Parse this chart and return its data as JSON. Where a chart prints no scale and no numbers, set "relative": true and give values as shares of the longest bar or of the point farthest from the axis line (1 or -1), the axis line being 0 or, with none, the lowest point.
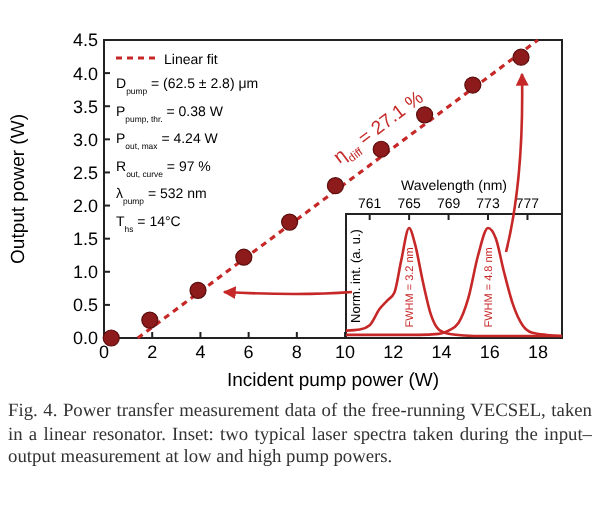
{
  "chart_data": [
    {
      "type": "scatter",
      "xlabel": "Incident pump power (W)",
      "ylabel": "Output power (W)",
      "xlim": [
        0,
        19
      ],
      "xticks": [
        0,
        2,
        4,
        6,
        8,
        10,
        12,
        14,
        16,
        18
      ],
      "ylim": [
        0,
        4.5
      ],
      "yticks": [
        {
          "value": 0,
          "label": "0.0"
        },
        0.5,
        {
          "value": 1,
          "label": "1.0"
        },
        1.5,
        {
          "value": 2,
          "label": "2.0"
        },
        2.5,
        {
          "value": 3,
          "label": "3.0"
        },
        3.5,
        {
          "value": 4,
          "label": "4.0"
        },
        4.5
      ],
      "grid": false,
      "legend": "top left",
      "series": [
        {
          "type": "line",
          "name": "Linear fit",
          "color": "#c62828",
          "line_style": "dashed",
          "x": [
            1.4,
            18.0
          ],
          "values": [
            0,
            4.5
          ]
        },
        {
          "type": "scatter",
          "marker": "circle",
          "color": "#8e1b1b",
          "x": [
            0.3,
            1.9,
            3.9,
            5.8,
            7.7,
            9.6,
            11.5,
            13.3,
            15.3,
            17.3
          ],
          "values": [
            0,
            0.27,
            0.72,
            1.22,
            1.75,
            2.3,
            2.85,
            3.37,
            3.82,
            4.24
          ]
        }
      ],
      "annotations": [
        "D$_{pump}$ = (62.5 ± 2.8) μm",
        "P$_{pump, thr.}$ = 0.38 W",
        "P$_{out, max}$ = 4.24 W",
        "R$_{out, curve}$ = 97 %",
        "λ$_{pump}$ = 532 nm",
        "T$_{hs}$ = 14°C",
        "η$_{diff}$ = 27.1 %",
        "Fig. 4. Power transfer measurement data of the free-running VECSEL, taken in a linear resonator. Inset: two typical laser spectra taken during the input–output measurement at low and high pump powers."
      ]
    },
    {
      "type": "line",
      "relative": true,
      "xlabel": "Wavelength (nm)",
      "ylabel": "Norm. int. (a. u.)",
      "xlim": [
        758.6,
        780.5
      ],
      "xticks": [
        761,
        765,
        769,
        773,
        777
      ],
      "tick_labels": "x",
      "series": [
        {
          "color": "#c62828",
          "x": [
            758.6,
            760,
            761,
            762,
            762.8,
            763.5,
            764.2,
            765,
            765.6,
            766.4,
            767.2,
            768,
            769,
            770,
            772,
            780.5
          ],
          "values": [
            0.05,
            0.06,
            0.1,
            0.25,
            0.33,
            0.4,
            0.7,
            1.0,
            0.85,
            0.5,
            0.2,
            0.06,
            0.02,
            0.01,
            0,
            0
          ]
        },
        {
          "color": "#c62828",
          "x": [
            758.6,
            766,
            768,
            769,
            770,
            771,
            772,
            773,
            773.8,
            774.6,
            775.5,
            776.5,
            777.5,
            779,
            780.5
          ],
          "values": [
            0.01,
            0.01,
            0.02,
            0.05,
            0.12,
            0.35,
            0.75,
            1.0,
            0.9,
            0.6,
            0.3,
            0.1,
            0.03,
            0.01,
            0
          ]
        }
      ],
      "annotations": [
        "FWHM = 3.2 nm",
        "FWHM = 4.8 nm"
      ]
    }
  ]
}
